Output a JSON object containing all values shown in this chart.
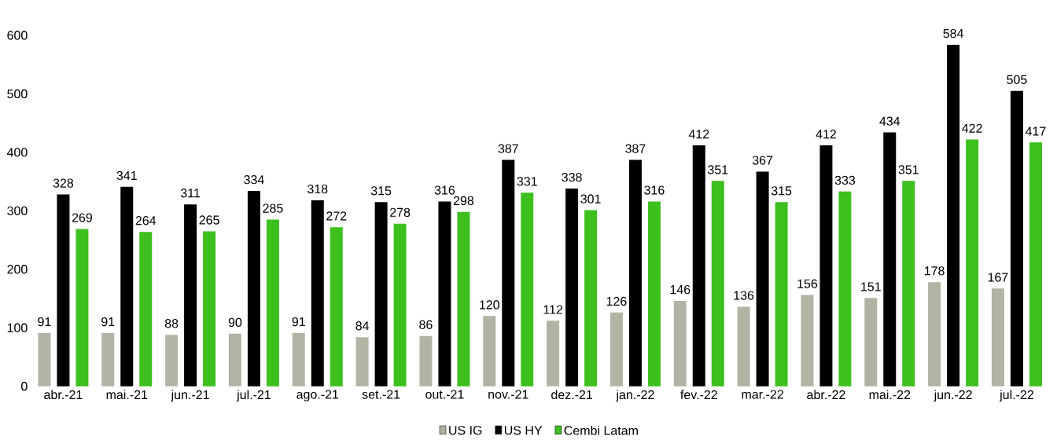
{
  "chart_data": {
    "type": "bar",
    "categories": [
      "abr.-21",
      "mai.-21",
      "jun.-21",
      "jul.-21",
      "ago.-21",
      "set.-21",
      "out.-21",
      "nov.-21",
      "dez.-21",
      "jan.-22",
      "fev.-22",
      "mar.-22",
      "abr.-22",
      "mai.-22",
      "jun.-22",
      "jul.-22"
    ],
    "series": [
      {
        "name": "US IG",
        "color": "#b3b3a3",
        "values": [
          91,
          91,
          88,
          90,
          91,
          84,
          86,
          120,
          112,
          126,
          146,
          136,
          156,
          151,
          178,
          167
        ]
      },
      {
        "name": "US HY",
        "color": "#000000",
        "values": [
          328,
          341,
          311,
          334,
          318,
          315,
          316,
          387,
          338,
          387,
          412,
          367,
          412,
          434,
          584,
          505
        ]
      },
      {
        "name": "Cembi Latam",
        "color": "#3dbf1e",
        "values": [
          269,
          264,
          265,
          285,
          272,
          278,
          298,
          331,
          301,
          316,
          351,
          315,
          333,
          351,
          422,
          417
        ]
      }
    ],
    "ylim": [
      0,
      600
    ],
    "yticks": [
      0,
      100,
      200,
      300,
      400,
      500,
      600
    ],
    "grid": false,
    "legend": "bottom",
    "data_labels": true
  }
}
